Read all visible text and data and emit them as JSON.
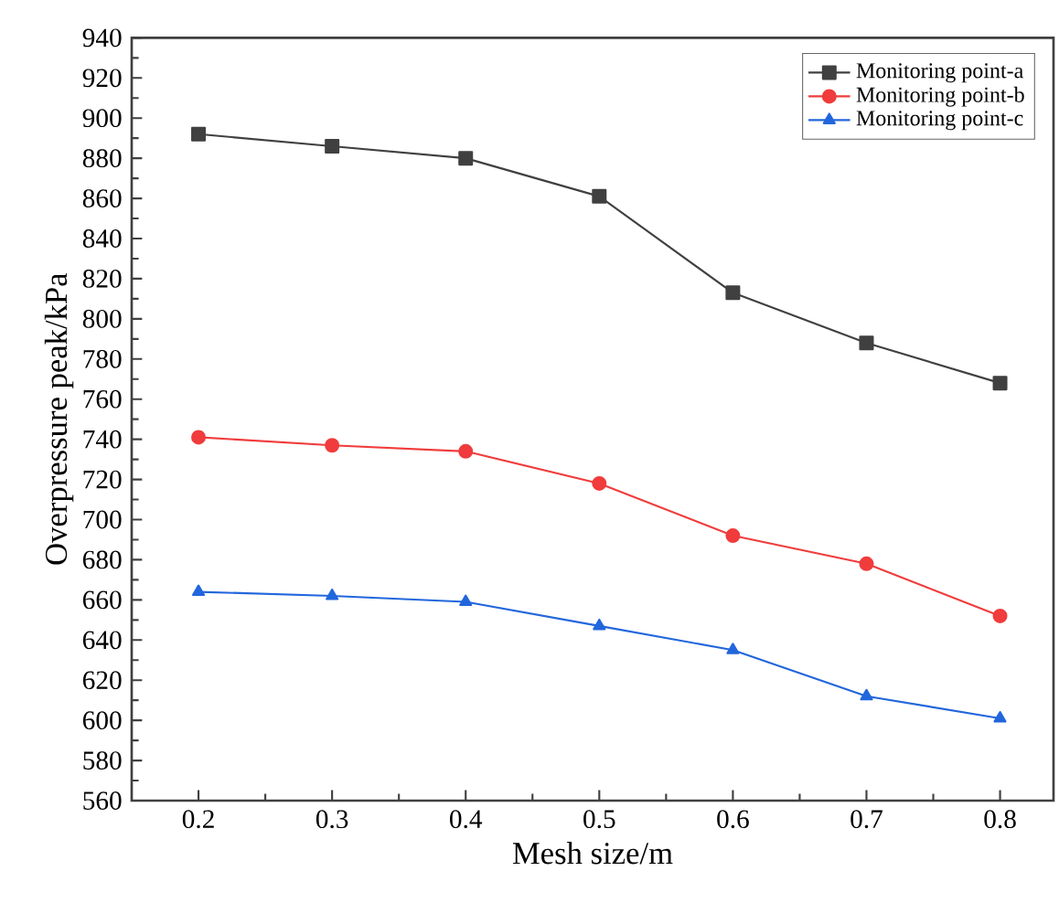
{
  "chart_data": {
    "type": "line",
    "xlabel": "Mesh size/m",
    "ylabel": "Overpressure peak/kPa",
    "x": [
      0.2,
      0.3,
      0.4,
      0.5,
      0.6,
      0.7,
      0.8
    ],
    "series": [
      {
        "name": "Monitoring point-a",
        "color": "#404040",
        "marker": "square",
        "values": [
          892,
          886,
          880,
          861,
          813,
          788,
          768
        ]
      },
      {
        "name": "Monitoring point-b",
        "color": "#f03c3c",
        "marker": "circle",
        "values": [
          741,
          737,
          734,
          718,
          692,
          678,
          652
        ]
      },
      {
        "name": "Monitoring point-c",
        "color": "#2266dd",
        "marker": "triangle",
        "values": [
          664,
          662,
          659,
          647,
          635,
          612,
          601
        ]
      }
    ],
    "xlim": [
      0.15,
      0.84
    ],
    "ylim": [
      560,
      940
    ],
    "xticks": [
      0.2,
      0.3,
      0.4,
      0.5,
      0.6,
      0.7,
      0.8
    ],
    "yticks": [
      560,
      580,
      600,
      620,
      640,
      660,
      680,
      700,
      720,
      740,
      760,
      780,
      800,
      820,
      840,
      860,
      880,
      900,
      920,
      940
    ],
    "legend": "top right",
    "grid": false,
    "line_style": "solid"
  }
}
